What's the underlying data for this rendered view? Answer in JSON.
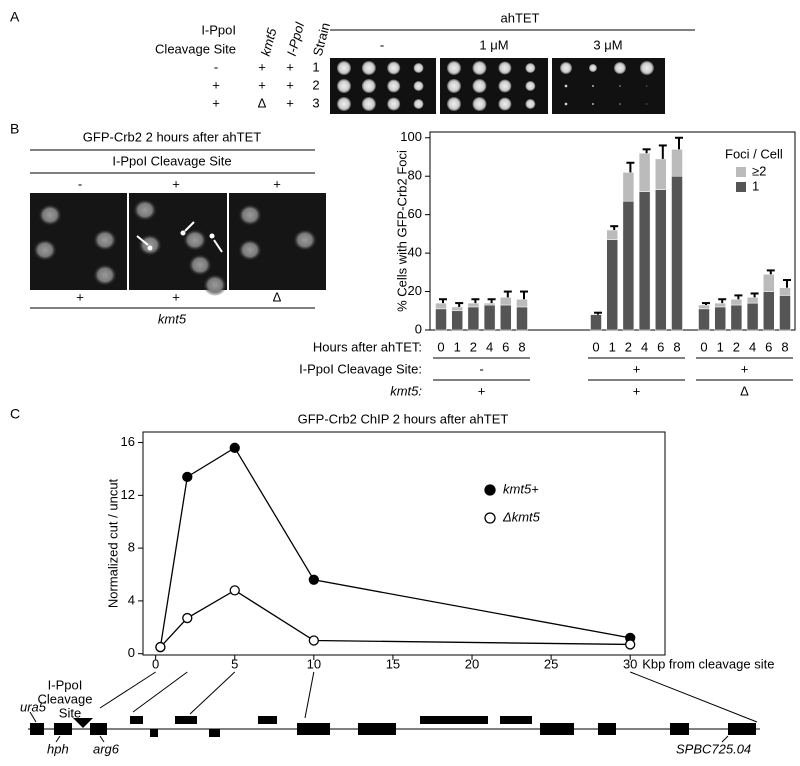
{
  "panel_a": {
    "letter": "A",
    "header_site": [
      "I-PpoI",
      "Cleavage Site"
    ],
    "header_cols": [
      "kmt5",
      "I-PpoI",
      "Strain"
    ],
    "rows": [
      [
        "-",
        "+",
        "+",
        "1"
      ],
      [
        "+",
        "+",
        "+",
        "2"
      ],
      [
        "+",
        "Δ",
        "+",
        "3"
      ]
    ],
    "treatment": "ahTET",
    "conditions": [
      "-",
      "1 μM",
      "3 μM"
    ]
  },
  "panel_b": {
    "letter": "B",
    "title": "GFP-Crb2 2 hours after ahTET",
    "subtitle": "I-PpoI Cleavage Site",
    "sites": [
      "-",
      "+",
      "+"
    ],
    "kmt5": [
      "+",
      "+",
      "Δ"
    ],
    "kmt5_label": "kmt5"
  },
  "panel_c": {
    "letter": "C",
    "site_label": [
      "I-PpoI",
      "Cleavage",
      "Site"
    ],
    "genes": [
      "ura5",
      "hph",
      "arg6",
      "SPBC725.04"
    ]
  },
  "chart_data": [
    {
      "type": "bar",
      "stacked": true,
      "y_label": "% Cells with GFP-Crb2 Foci",
      "x_label": "Hours after ahTET:",
      "group_row_labels": [
        "I-PpoI Cleavage Site:",
        "kmt5:"
      ],
      "groups": [
        [
          "-",
          "+"
        ],
        [
          "+",
          "+"
        ],
        [
          "+",
          "Δ"
        ]
      ],
      "categories": [
        "0",
        "1",
        "2",
        "4",
        "6",
        "8",
        "0",
        "1",
        "2",
        "4",
        "6",
        "8",
        "0",
        "1",
        "2",
        "4",
        "6",
        "8"
      ],
      "legend_title": "Foci / Cell",
      "series": [
        {
          "name": "1",
          "color": "#555555",
          "values": [
            11,
            10,
            12,
            13,
            13,
            12,
            8,
            47,
            67,
            72,
            73,
            80,
            11,
            12,
            13,
            14,
            20,
            18
          ]
        },
        {
          "name": "≥2",
          "color": "#bbbbbb",
          "values": [
            3,
            2,
            2,
            1,
            4,
            4,
            0,
            5,
            15,
            20,
            16,
            14,
            2,
            2,
            3,
            3,
            9,
            4
          ],
          "errors": [
            2,
            2,
            2,
            2,
            3,
            4,
            1,
            2,
            5,
            2,
            7,
            6,
            1,
            2,
            2,
            2,
            2,
            4
          ]
        }
      ],
      "ylim": [
        0,
        103
      ],
      "yticks": [
        0,
        20,
        40,
        60,
        80,
        100
      ]
    },
    {
      "type": "line",
      "title": "GFP-Crb2 ChIP 2 hours after ahTET",
      "x_label": "Kbp from cleavage site",
      "y_label": "Normalized cut / uncut",
      "x": [
        0.3,
        2,
        5,
        10,
        30
      ],
      "series": [
        {
          "name": "kmt5+",
          "color": "#000000",
          "filled": true,
          "values": [
            0.5,
            13.4,
            15.6,
            5.6,
            1.2
          ]
        },
        {
          "name": "Δkmt5",
          "color": "#000000",
          "filled": false,
          "values": [
            0.5,
            2.7,
            4.8,
            1.0,
            0.7
          ]
        }
      ],
      "xlim": [
        -0.8,
        32.2
      ],
      "ylim": [
        -0.1,
        16.8
      ],
      "xticks": [
        0,
        5,
        10,
        15,
        20,
        25,
        30
      ],
      "yticks": [
        0,
        4,
        8,
        12,
        16
      ]
    }
  ]
}
